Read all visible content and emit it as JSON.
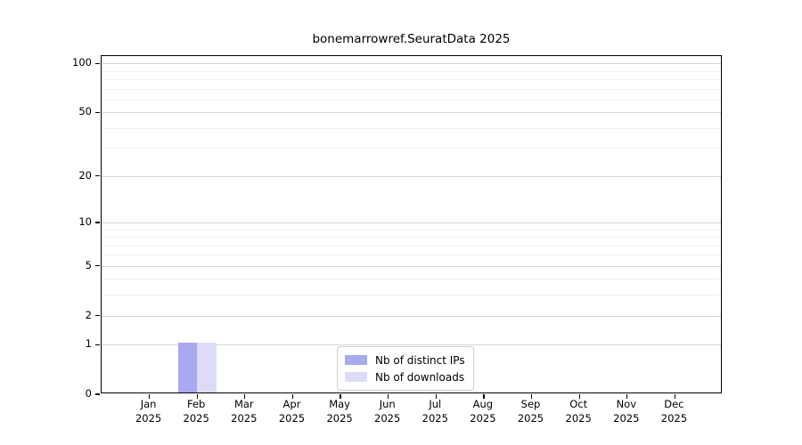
{
  "chart_data": {
    "type": "bar",
    "title": "bonemarrowref.SeuratData 2025",
    "categories": [
      "Jan",
      "Feb",
      "Mar",
      "Apr",
      "May",
      "Jun",
      "Jul",
      "Aug",
      "Sep",
      "Oct",
      "Nov",
      "Dec"
    ],
    "category_year": "2025",
    "series": [
      {
        "name": "Nb of distinct IPs",
        "color": "#a9a9f2",
        "values": [
          0,
          1,
          0,
          0,
          0,
          0,
          0,
          0,
          0,
          0,
          0,
          0
        ]
      },
      {
        "name": "Nb of downloads",
        "color": "#dcdcf8",
        "values": [
          0,
          1,
          0,
          0,
          0,
          0,
          0,
          0,
          0,
          0,
          0,
          0
        ]
      }
    ],
    "y_scale": "log10(1+value)",
    "y_ticks": [
      0,
      1,
      2,
      5,
      10,
      20,
      50,
      100
    ],
    "y_minor_gridlines": [
      3,
      4,
      6,
      7,
      8,
      9,
      30,
      40,
      60,
      70,
      80,
      90
    ],
    "ylim": [
      0,
      111
    ],
    "grid": "horizontal",
    "legend_position": "lower center",
    "xlabel": "",
    "ylabel": ""
  },
  "colors": {
    "background": "#ffffff",
    "axis": "#000000",
    "major_grid": "#d6d6d6",
    "minor_grid": "#f0f0f0",
    "series_ips": "#a9a9f2",
    "series_downloads": "#dcdcf8",
    "legend_border": "#cccccc"
  }
}
